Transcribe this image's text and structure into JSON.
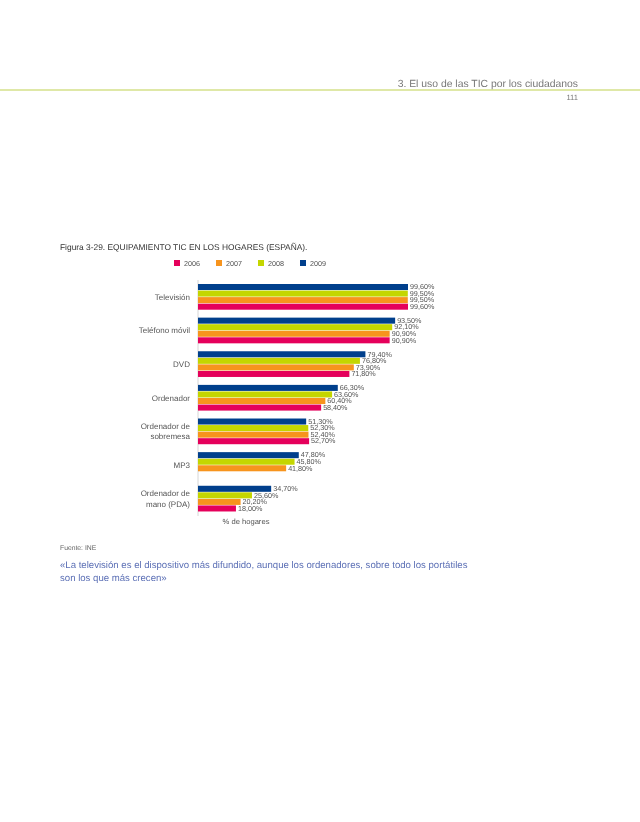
{
  "chart_data": {
    "type": "bar",
    "orientation": "horizontal",
    "title": "Figura 3-29. EQUIPAMIENTO TIC EN LOS HOGARES (ESPAÑA).",
    "xlabel": "% de hogares",
    "legend": "top",
    "categories": [
      "Televisión",
      "Teléfono móvil",
      "DVD",
      "Ordenador",
      "Ordenador de sobremesa",
      "MP3",
      "Ordenador de mano (PDA)"
    ],
    "series": [
      {
        "name": "2006",
        "color": "#e5005b",
        "values": [
          99.6,
          90.9,
          71.8,
          58.4,
          52.7,
          null,
          18.0
        ],
        "value_labels": [
          "99,60%",
          "90,90%",
          "71,80%",
          "58,40%",
          "52,70%",
          null,
          "18,00%"
        ]
      },
      {
        "name": "2007",
        "color": "#f7941d",
        "values": [
          99.5,
          90.9,
          73.9,
          60.4,
          52.4,
          41.8,
          20.2
        ],
        "value_labels": [
          "99,50%",
          "90,90%",
          "73,90%",
          "60,40%",
          "52,40%",
          "41,80%",
          "20,20%"
        ]
      },
      {
        "name": "2008",
        "color": "#c4d600",
        "values": [
          99.5,
          92.1,
          76.8,
          63.6,
          52.3,
          45.8,
          25.6
        ],
        "value_labels": [
          "99,50%",
          "92,10%",
          "76,80%",
          "63,60%",
          "52,30%",
          "45,80%",
          "25,60%"
        ]
      },
      {
        "name": "2009",
        "color": "#003f8c",
        "values": [
          99.6,
          93.5,
          79.4,
          66.3,
          51.3,
          47.8,
          34.7
        ],
        "value_labels": [
          "99,60%",
          "93,50%",
          "79,40%",
          "66,30%",
          "51,30%",
          "47,80%",
          "34,70%"
        ]
      }
    ],
    "annotations": [
      "3. El uso de las TIC por los ciudadanos",
      "111",
      "Fuente: INE",
      "«La televisión es el dispositivo más difundido, aunque los ordenadores, sobre todo los portátiles son los que más crecen»"
    ]
  }
}
